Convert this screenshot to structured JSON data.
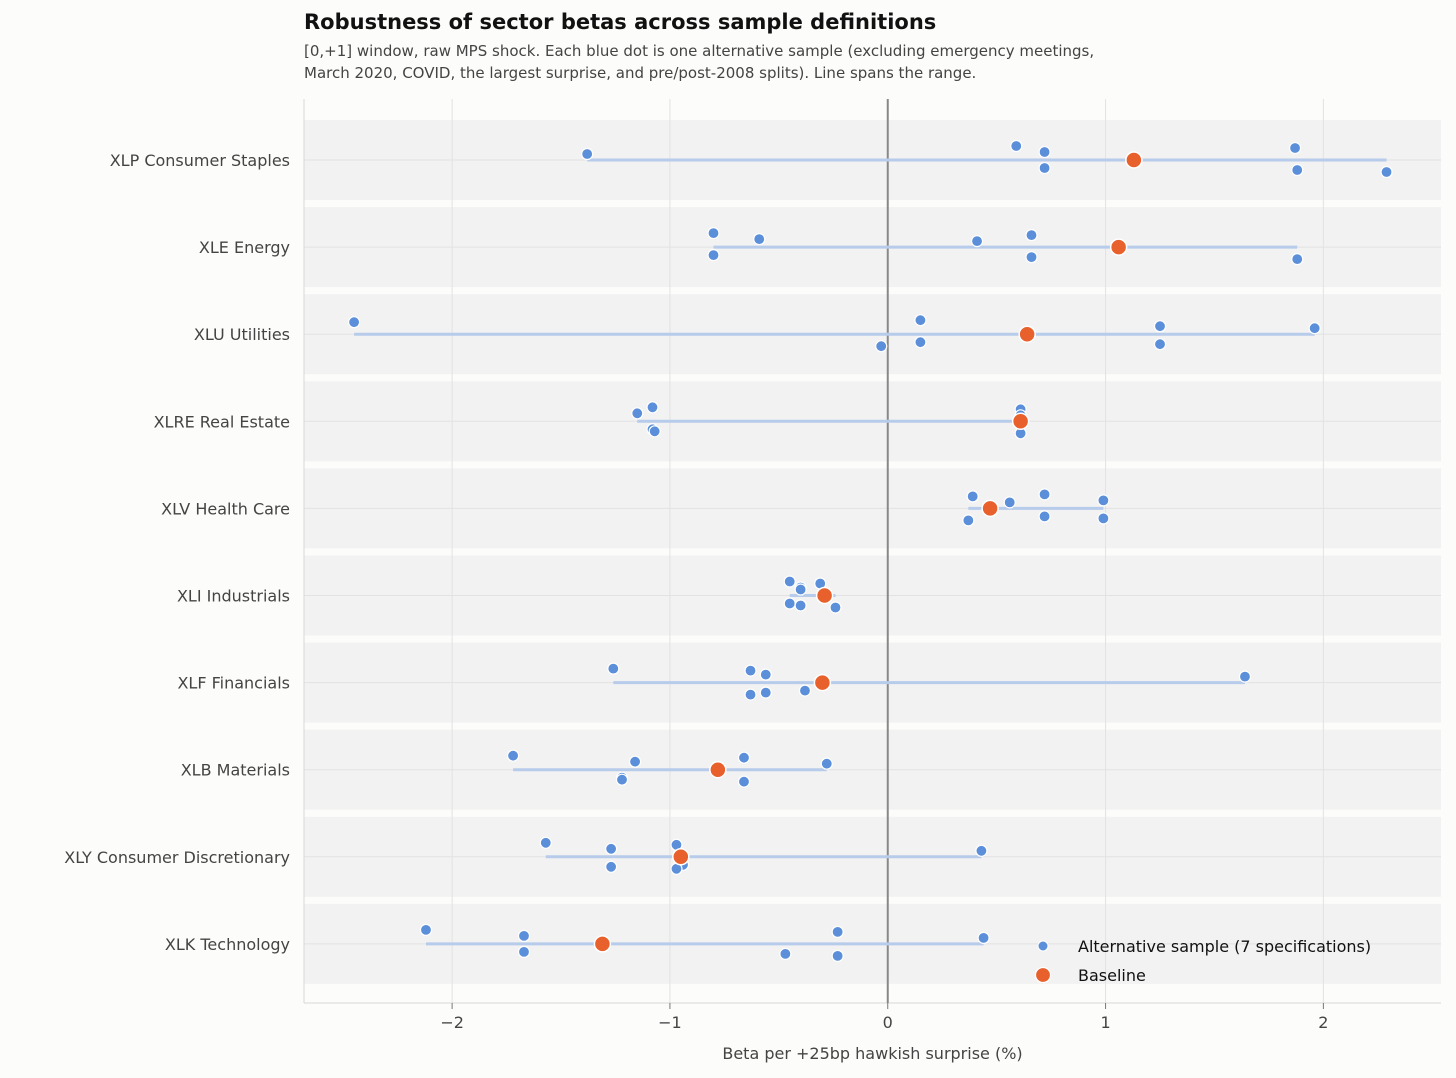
{
  "chart_data": {
    "type": "scatter",
    "title": "Robustness of sector betas across sample definitions",
    "subtitle": [
      "[0,+1] window, raw MPS shock. Each blue dot is one alternative sample (excluding emergency meetings,",
      "March 2020, COVID, the largest surprise, and pre/post-2008 splits). Line spans the range."
    ],
    "xlabel": "Beta per +25bp hawkish surprise (%)",
    "ylabel": "",
    "xlim": [
      -2.68,
      2.54
    ],
    "xticks": [
      -2,
      -1,
      0,
      1,
      2
    ],
    "xtick_labels": [
      "−2",
      "−1",
      "0",
      "1",
      "2"
    ],
    "grid": true,
    "legend_position": "bottom-right",
    "legend": {
      "alternative": "Alternative sample (7 specifications)",
      "baseline": "Baseline"
    },
    "colors": {
      "alternative": "#5b8fd9",
      "baseline": "#e8602c",
      "range_line": "#b7cbea",
      "zero_line": "#888888",
      "band": "#f2f2f2",
      "grid": "#e2e2e2"
    },
    "sectors": [
      {
        "label": "XLP  Consumer Staples",
        "baseline": 1.13,
        "alternatives": [
          0.59,
          0.72,
          0.72,
          1.88,
          1.87,
          2.29,
          -1.38
        ]
      },
      {
        "label": "XLE  Energy",
        "baseline": 1.06,
        "alternatives": [
          -0.8,
          -0.8,
          -0.59,
          0.66,
          0.66,
          1.88,
          0.41
        ]
      },
      {
        "label": "XLU  Utilities",
        "baseline": 0.64,
        "alternatives": [
          0.15,
          0.15,
          1.25,
          1.25,
          -2.45,
          -0.03,
          1.96
        ]
      },
      {
        "label": "XLRE  Real Estate",
        "baseline": 0.61,
        "alternatives": [
          -1.08,
          -1.08,
          -1.15,
          -1.07,
          0.61,
          0.61,
          0.61
        ]
      },
      {
        "label": "XLV  Health Care",
        "baseline": 0.47,
        "alternatives": [
          0.72,
          0.72,
          0.99,
          0.99,
          0.39,
          0.37,
          0.56
        ]
      },
      {
        "label": "XLI  Industrials",
        "baseline": -0.29,
        "alternatives": [
          -0.45,
          -0.45,
          -0.4,
          -0.4,
          -0.31,
          -0.24,
          -0.4
        ]
      },
      {
        "label": "XLF  Financials",
        "baseline": -0.3,
        "alternatives": [
          -1.26,
          -0.38,
          -0.56,
          -0.56,
          -0.63,
          -0.63,
          1.64
        ]
      },
      {
        "label": "XLB  Materials",
        "baseline": -0.78,
        "alternatives": [
          -1.72,
          -1.22,
          -1.16,
          -1.22,
          -0.66,
          -0.66,
          -0.28
        ]
      },
      {
        "label": "XLY  Consumer Discretionary",
        "baseline": -0.95,
        "alternatives": [
          -1.57,
          -0.94,
          -1.27,
          -1.27,
          -0.97,
          -0.97,
          0.43
        ]
      },
      {
        "label": "XLK  Technology",
        "baseline": -1.31,
        "alternatives": [
          -2.12,
          -1.67,
          -1.67,
          -0.47,
          -0.23,
          -0.23,
          0.44
        ]
      }
    ]
  }
}
